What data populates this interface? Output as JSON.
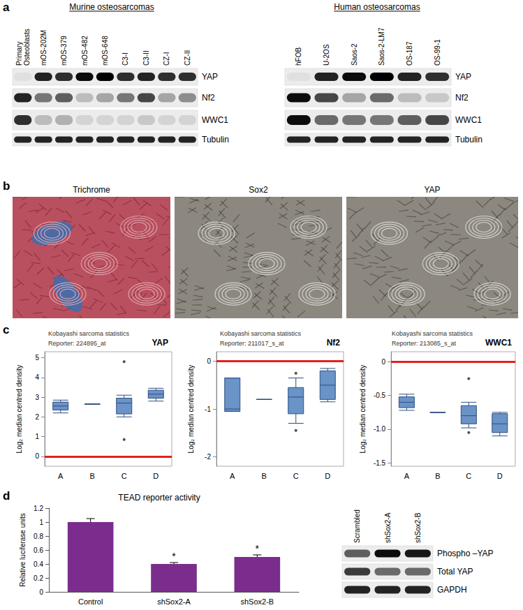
{
  "chart_data": [
    {
      "type": "boxplot",
      "title": "Kobayashi sarcoma statistics",
      "reporter": "Reporter: 224895_at",
      "label": "YAP",
      "ylabel": "Log₂ median centred density",
      "categories": [
        "A",
        "B",
        "C",
        "D"
      ],
      "boxes": [
        [
          2.2,
          2.35,
          2.55,
          2.75,
          2.85
        ],
        [
          2.65,
          2.65,
          2.65,
          2.65,
          2.65
        ],
        [
          2.0,
          2.15,
          2.7,
          2.95,
          3.1
        ],
        [
          2.8,
          2.95,
          3.15,
          3.35,
          3.45
        ]
      ],
      "outliers": [
        [
          "C",
          4.8
        ],
        [
          "C",
          0.85
        ]
      ],
      "reference_line": 0,
      "reference_color": "#e3211c",
      "color": "#6a93c8",
      "ylim": [
        -0.5,
        5.3
      ],
      "yticks": [
        0,
        1,
        2,
        3,
        4,
        5
      ],
      "grid": false
    },
    {
      "type": "boxplot",
      "title": "Kobayashi sarcoma statistics",
      "reporter": "Reporter: 211017_s_at",
      "label": "Nf2",
      "ylabel": "Log₂ median centred density",
      "categories": [
        "A",
        "B",
        "C",
        "D"
      ],
      "boxes": [
        [
          -1.05,
          -1.05,
          -1.0,
          -0.35,
          -0.35
        ],
        [
          -0.8,
          -0.8,
          -0.8,
          -0.8,
          -0.8
        ],
        [
          -1.3,
          -1.1,
          -0.75,
          -0.55,
          -0.35
        ],
        [
          -0.85,
          -0.8,
          -0.5,
          -0.2,
          -0.15
        ]
      ],
      "outliers": [
        [
          "C",
          -0.25
        ],
        [
          "C",
          -1.45
        ]
      ],
      "reference_line": 0,
      "reference_color": "#e3211c",
      "color": "#6a93c8",
      "ylim": [
        -2.2,
        0.2
      ],
      "yticks": [
        -2,
        -1,
        0
      ],
      "grid": false
    },
    {
      "type": "boxplot",
      "title": "Kobayashi sarcoma statistics",
      "reporter": "Reporter: 213085_s_at",
      "label": "WWC1",
      "ylabel": "Log₂ median centred density",
      "categories": [
        "A",
        "B",
        "C",
        "D"
      ],
      "boxes": [
        [
          -0.72,
          -0.68,
          -0.6,
          -0.52,
          -0.48
        ],
        [
          -0.75,
          -0.75,
          -0.75,
          -0.75,
          -0.75
        ],
        [
          -0.98,
          -0.92,
          -0.8,
          -0.65,
          -0.6
        ],
        [
          -1.1,
          -1.05,
          -0.92,
          -0.77,
          -0.75
        ]
      ],
      "outliers": [
        [
          "C",
          -0.25
        ],
        [
          "C",
          -1.05
        ]
      ],
      "reference_line": 0,
      "reference_color": "#e3211c",
      "color": "#6a93c8",
      "ylim": [
        -1.55,
        0.15
      ],
      "yticks": [
        -1.5,
        {
          "value": -1,
          "label": "-1.0"
        },
        -0.5,
        0
      ],
      "grid": false
    },
    {
      "type": "bar",
      "title": "TEAD reporter activity",
      "ylabel": "Relative luciferase units",
      "categories": [
        "Control",
        "shSox2-A",
        "shSox2-B"
      ],
      "values": [
        1,
        0.4,
        0.5
      ],
      "errors": [
        0.05,
        0.02,
        0.03
      ],
      "significance": [
        null,
        "*",
        "*"
      ],
      "color": "#7b2d8e",
      "ylim": [
        0,
        1.2
      ],
      "yticks": [
        0,
        0.2,
        0.4,
        0.6,
        0.8,
        1,
        1.2
      ],
      "grid": false
    }
  ],
  "figure": {
    "panel_labels": [
      "a",
      "b",
      "c",
      "d"
    ],
    "blots": [
      {
        "heading": "Murine osteosarcomas",
        "lanes": [
          "Primary Osteoblasts",
          "mOS-202M",
          "mOS-379",
          "mOS-482",
          "mOS-648",
          "C3-I",
          "C3-II",
          "CZ-I",
          "CZ-II"
        ],
        "rows": [
          {
            "label": "YAP",
            "intensities": [
              0.05,
              0.85,
              0.8,
              0.95,
              1.0,
              0.8,
              0.85,
              0.8,
              0.8
            ]
          },
          {
            "label": "Nf2",
            "intensities": [
              0.85,
              0.5,
              0.6,
              0.2,
              0.3,
              0.5,
              0.7,
              0.3,
              0.4
            ]
          },
          {
            "label": "WWC1",
            "intensities": [
              0.8,
              0.2,
              0.25,
              0.1,
              0.1,
              0.1,
              0.15,
              0.1,
              0.1
            ]
          },
          {
            "label": "Tubulin",
            "intensities": [
              0.85,
              0.85,
              0.85,
              0.85,
              0.85,
              0.85,
              0.85,
              0.85,
              0.85
            ]
          }
        ]
      },
      {
        "heading": "Human osteosarcomas",
        "lanes": [
          "hFOB",
          "U-2OS",
          "Saos-2",
          "Saos-2-LM7",
          "OS-187",
          "OS-99-1"
        ],
        "rows": [
          {
            "label": "YAP",
            "intensities": [
              0.05,
              0.85,
              0.95,
              1.0,
              0.85,
              0.8
            ]
          },
          {
            "label": "Nf2",
            "intensities": [
              0.95,
              0.7,
              0.3,
              0.55,
              0.2,
              0.15
            ]
          },
          {
            "label": "WWC1",
            "intensities": [
              0.95,
              0.55,
              0.5,
              0.5,
              0.6,
              0.7
            ]
          },
          {
            "label": "Tubulin",
            "intensities": [
              0.85,
              0.85,
              0.85,
              0.85,
              0.85,
              0.85
            ]
          }
        ]
      },
      {
        "lanes": [
          "Scrambled",
          "shSox2-A",
          "shSox2-B"
        ],
        "rows": [
          {
            "label": "Phospho –YAP",
            "intensities": [
              0.6,
              0.95,
              0.9
            ]
          },
          {
            "label": "Total YAP",
            "intensities": [
              0.75,
              0.55,
              0.55
            ]
          },
          {
            "label": "GAPDH",
            "intensities": [
              0.85,
              0.85,
              0.85
            ]
          }
        ]
      }
    ],
    "histology": {
      "images": [
        {
          "title": "Trichrome"
        },
        {
          "title": "Sox2"
        },
        {
          "title": "YAP"
        }
      ]
    }
  }
}
